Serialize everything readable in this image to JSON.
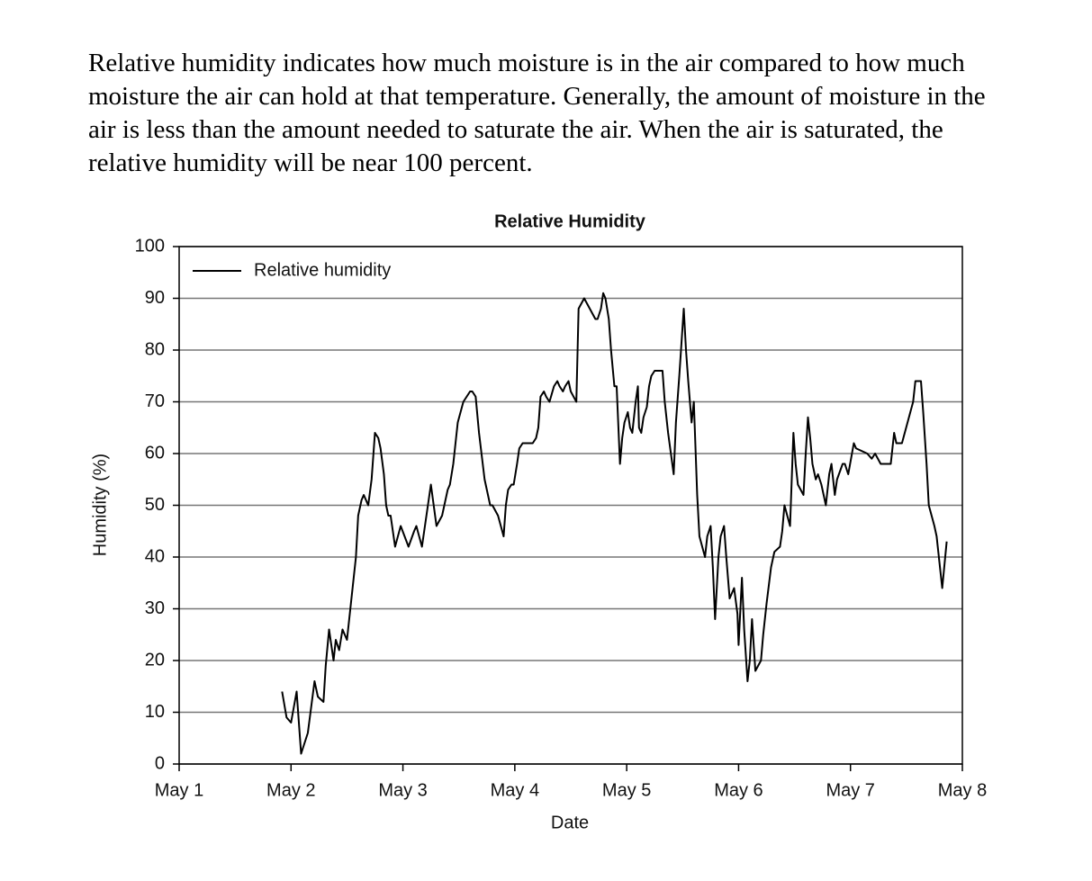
{
  "paragraph": "Relative humidity indicates how much moisture is in the air compared to how much moisture the air can hold at that temperature. Generally, the amount of moisture in the air is less than the amount needed to saturate the air. When the air is saturated, the relative humidity will be near 100 percent.",
  "chart_data": {
    "type": "line",
    "title": "Relative Humidity",
    "xlabel": "Date",
    "ylabel": "Humidity (%)",
    "x": [
      0.92,
      0.96,
      1.0,
      1.05,
      1.09,
      1.15,
      1.21,
      1.24,
      1.29,
      1.31,
      1.34,
      1.38,
      1.4,
      1.43,
      1.46,
      1.5,
      1.53,
      1.55,
      1.58,
      1.6,
      1.63,
      1.65,
      1.69,
      1.72,
      1.75,
      1.78,
      1.8,
      1.83,
      1.85,
      1.87,
      1.89,
      1.93,
      1.98,
      2.05,
      2.1,
      2.12,
      2.17,
      2.21,
      2.25,
      2.3,
      2.35,
      2.4,
      2.42,
      2.45,
      2.49,
      2.54,
      2.6,
      2.62,
      2.65,
      2.68,
      2.73,
      2.78,
      2.8,
      2.85,
      2.9,
      2.92,
      2.94,
      2.97,
      2.99,
      3.02,
      3.04,
      3.07,
      3.16,
      3.19,
      3.21,
      3.23,
      3.26,
      3.28,
      3.31,
      3.35,
      3.38,
      3.4,
      3.43,
      3.45,
      3.48,
      3.5,
      3.55,
      3.57,
      3.62,
      3.67,
      3.72,
      3.74,
      3.77,
      3.79,
      3.81,
      3.84,
      3.86,
      3.89,
      3.91,
      3.94,
      3.96,
      3.98,
      4.01,
      4.03,
      4.05,
      4.08,
      4.1,
      4.11,
      4.13,
      4.15,
      4.18,
      4.2,
      4.22,
      4.25,
      4.32,
      4.34,
      4.37,
      4.42,
      4.44,
      4.47,
      4.51,
      4.53,
      4.55,
      4.58,
      4.6,
      4.63,
      4.65,
      4.7,
      4.72,
      4.75,
      4.77,
      4.79,
      4.82,
      4.84,
      4.87,
      4.89,
      4.92,
      4.96,
      4.99,
      5.0,
      5.03,
      5.05,
      5.08,
      5.1,
      5.12,
      5.15,
      5.2,
      5.22,
      5.25,
      5.29,
      5.32,
      5.37,
      5.39,
      5.41,
      5.46,
      5.49,
      5.51,
      5.53,
      5.58,
      5.6,
      5.62,
      5.64,
      5.66,
      5.69,
      5.71,
      5.74,
      5.78,
      5.81,
      5.83,
      5.86,
      5.88,
      5.93,
      5.95,
      5.98,
      6.03,
      6.05,
      6.15,
      6.19,
      6.22,
      6.27,
      6.36,
      6.39,
      6.41,
      6.46,
      6.51,
      6.56,
      6.58,
      6.63,
      6.65,
      6.68,
      6.7,
      6.75,
      6.77,
      6.8,
      6.82,
      6.86
    ],
    "series": [
      {
        "name": "Relative humidity",
        "color": "#000000",
        "values": [
          14,
          9,
          8,
          14,
          2,
          6,
          16,
          13,
          12,
          19,
          26,
          20,
          24,
          22,
          26,
          24,
          30,
          34,
          40,
          48,
          51,
          52,
          50,
          55,
          64,
          63,
          61,
          56,
          50,
          48,
          48,
          42,
          46,
          42,
          45,
          46,
          42,
          48,
          54,
          46,
          48,
          53,
          54,
          58,
          66,
          70,
          72,
          72,
          71,
          64,
          55,
          50,
          50,
          48,
          44,
          50,
          53,
          54,
          54,
          58,
          61,
          62,
          62,
          63,
          65,
          71,
          72,
          71,
          70,
          73,
          74,
          73,
          72,
          73,
          74,
          72,
          70,
          88,
          90,
          88,
          86,
          86,
          88,
          91,
          90,
          86,
          80,
          73,
          73,
          58,
          63,
          66,
          68,
          65,
          64,
          70,
          73,
          65,
          64,
          67,
          69,
          73,
          75,
          76,
          76,
          70,
          64,
          56,
          66,
          75,
          88,
          80,
          74,
          66,
          70,
          52,
          44,
          40,
          44,
          46,
          38,
          28,
          40,
          44,
          46,
          40,
          32,
          34,
          29,
          23,
          36,
          26,
          16,
          20,
          28,
          18,
          20,
          25,
          31,
          38,
          41,
          42,
          45,
          50,
          46,
          64,
          58,
          54,
          52,
          60,
          67,
          63,
          58,
          55,
          56,
          54,
          50,
          56,
          58,
          52,
          55,
          58,
          58,
          56,
          62,
          61,
          60,
          59,
          60,
          58,
          58,
          64,
          62,
          62,
          66,
          70,
          74,
          74,
          68,
          58,
          50,
          46,
          44,
          38,
          34,
          43
        ]
      }
    ],
    "xlim": [
      0,
      7
    ],
    "ylim": [
      0,
      100
    ],
    "xticks": [
      {
        "value": 0,
        "label": "May 1"
      },
      {
        "value": 1,
        "label": "May 2"
      },
      {
        "value": 2,
        "label": "May 3"
      },
      {
        "value": 3,
        "label": "May 4"
      },
      {
        "value": 4,
        "label": "May 5"
      },
      {
        "value": 5,
        "label": "May 6"
      },
      {
        "value": 6,
        "label": "May 7"
      },
      {
        "value": 7,
        "label": "May 8"
      }
    ],
    "yticks": [
      0,
      10,
      20,
      30,
      40,
      50,
      60,
      70,
      80,
      90,
      100
    ],
    "grid": true,
    "legend": "upper left"
  }
}
